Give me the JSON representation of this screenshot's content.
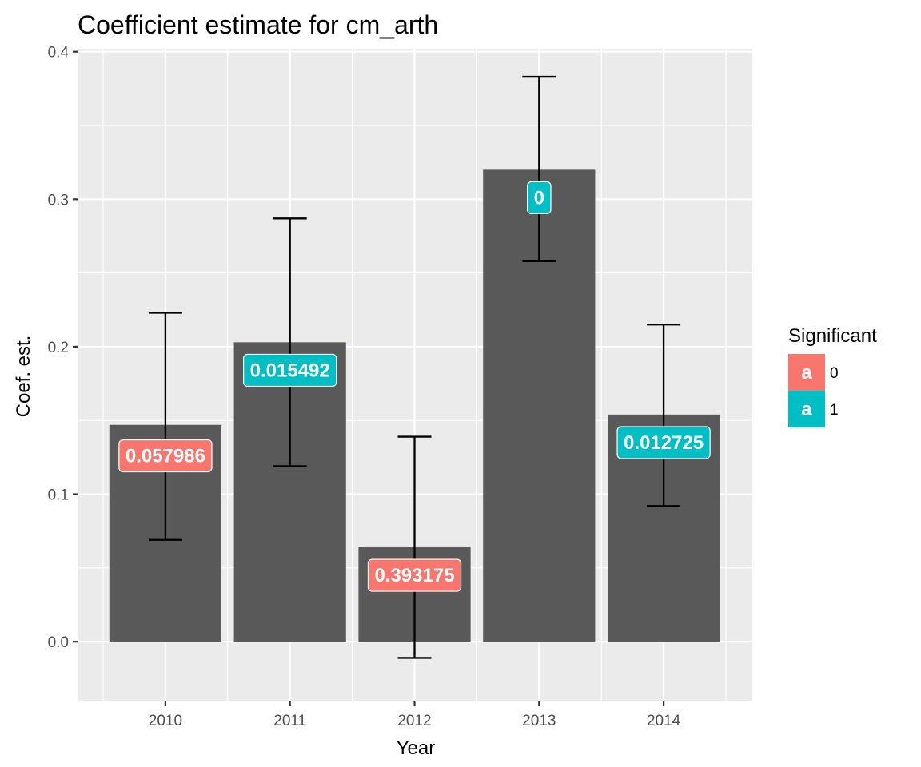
{
  "chart_data": {
    "type": "bar",
    "title": "Coefficient estimate for cm_arth",
    "xlabel": "Year",
    "ylabel": "Coef. est.",
    "categories": [
      "2010",
      "2011",
      "2012",
      "2013",
      "2014"
    ],
    "values": [
      0.147,
      0.203,
      0.064,
      0.32,
      0.154
    ],
    "error_low": [
      0.069,
      0.119,
      -0.011,
      0.258,
      0.092
    ],
    "error_high": [
      0.223,
      0.287,
      0.139,
      0.383,
      0.215
    ],
    "data_labels": [
      "0.057986",
      "0.015492",
      "0.393175",
      "0",
      "0.012725"
    ],
    "label_y": [
      0.126,
      0.184,
      0.045,
      0.301,
      0.135
    ],
    "significant": [
      "0",
      "1",
      "0",
      "1",
      "1"
    ],
    "ylim": [
      -0.04,
      0.402
    ],
    "yticks": [
      0.0,
      0.1,
      0.2,
      0.3,
      0.4
    ],
    "ytick_labels": [
      "0.0",
      "0.1",
      "0.2",
      "0.3",
      "0.4"
    ],
    "grid": true,
    "legend": {
      "title": "Significant",
      "position": "right",
      "key_glyph": "a",
      "entries": [
        {
          "label": "0",
          "color": "#F8766D"
        },
        {
          "label": "1",
          "color": "#00BFC4"
        }
      ]
    },
    "colors": {
      "bar": "#595959",
      "panel": "#EBEBEB",
      "grid": "#FFFFFF",
      "errorbar": "#000000",
      "sig0": "#F8766D",
      "sig1": "#00BFC4"
    }
  }
}
